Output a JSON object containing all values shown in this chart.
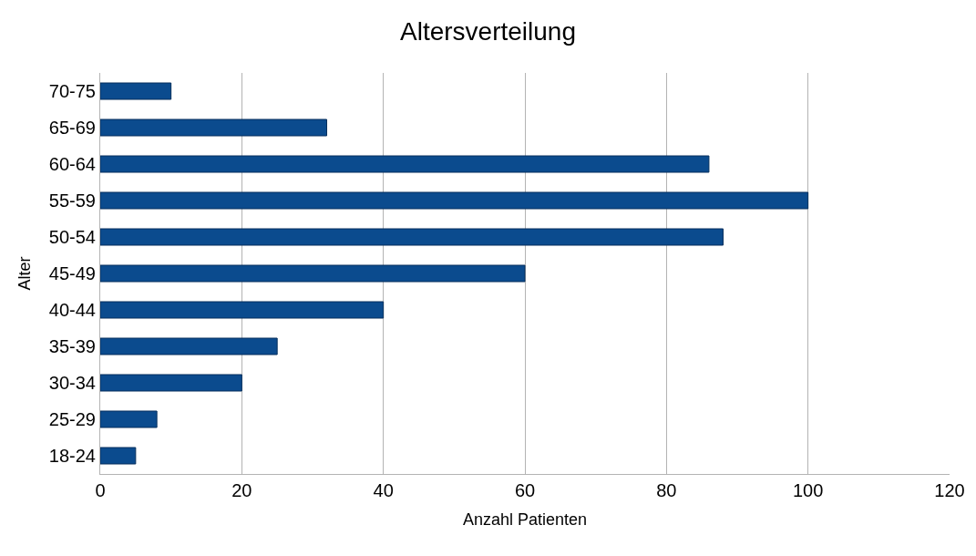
{
  "chart_data": {
    "type": "bar",
    "orientation": "horizontal",
    "title": "Altersverteilung",
    "xlabel": "Anzahl Patienten",
    "ylabel": "Alter",
    "categories": [
      "70-75",
      "65-69",
      "60-64",
      "55-59",
      "50-54",
      "45-49",
      "40-44",
      "35-39",
      "30-34",
      "25-29",
      "18-24"
    ],
    "values": [
      10,
      32,
      86,
      100,
      88,
      60,
      40,
      25,
      20,
      8,
      5
    ],
    "color": "#0b4b8e",
    "xlim": [
      0,
      120
    ],
    "xticks": [
      0,
      20,
      40,
      60,
      80,
      100,
      120
    ],
    "grid": "x"
  }
}
